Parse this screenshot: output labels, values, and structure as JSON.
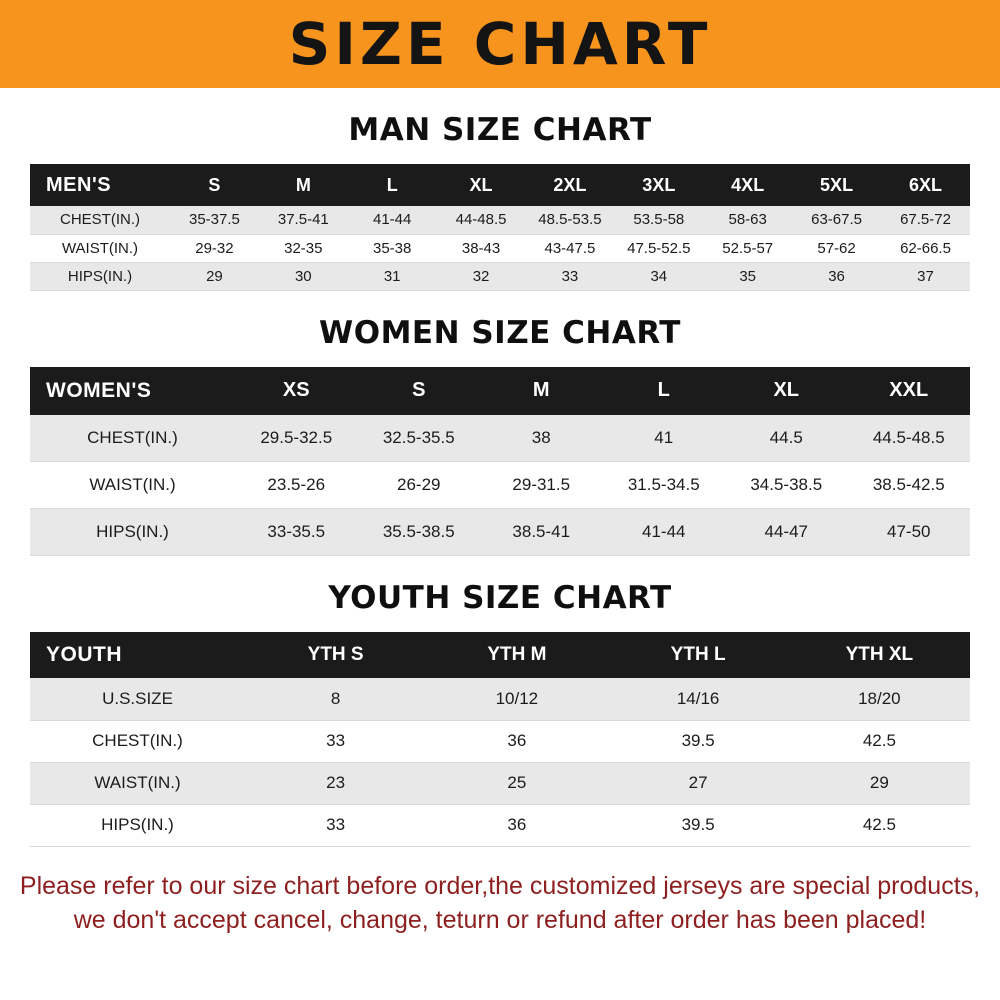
{
  "banner": {
    "title": "SIZE CHART",
    "bg_color": "#F7941E",
    "text_color": "#141414"
  },
  "sections": [
    {
      "heading": "MAN SIZE CHART",
      "table": {
        "header": [
          "MEN'S",
          "S",
          "M",
          "L",
          "XL",
          "2XL",
          "3XL",
          "4XL",
          "5XL",
          "6XL"
        ],
        "rows": [
          [
            "CHEST(IN.)",
            "35-37.5",
            "37.5-41",
            "41-44",
            "44-48.5",
            "48.5-53.5",
            "53.5-58",
            "58-63",
            "63-67.5",
            "67.5-72"
          ],
          [
            "WAIST(IN.)",
            "29-32",
            "32-35",
            "35-38",
            "38-43",
            "43-47.5",
            "47.5-52.5",
            "52.5-57",
            "57-62",
            "62-66.5"
          ],
          [
            "HIPS(IN.)",
            "29",
            "30",
            "31",
            "32",
            "33",
            "34",
            "35",
            "36",
            "37"
          ]
        ]
      }
    },
    {
      "heading": "WOMEN SIZE CHART",
      "table": {
        "header": [
          "WOMEN'S",
          "XS",
          "S",
          "M",
          "L",
          "XL",
          "XXL"
        ],
        "rows": [
          [
            "CHEST(IN.)",
            "29.5-32.5",
            "32.5-35.5",
            "38",
            "41",
            "44.5",
            "44.5-48.5"
          ],
          [
            "WAIST(IN.)",
            "23.5-26",
            "26-29",
            "29-31.5",
            "31.5-34.5",
            "34.5-38.5",
            "38.5-42.5"
          ],
          [
            "HIPS(IN.)",
            "33-35.5",
            "35.5-38.5",
            "38.5-41",
            "41-44",
            "44-47",
            "47-50"
          ]
        ]
      }
    },
    {
      "heading": "YOUTH SIZE CHART",
      "table": {
        "header": [
          "YOUTH",
          "YTH S",
          "YTH M",
          "YTH L",
          "YTH XL"
        ],
        "rows": [
          [
            "U.S.SIZE",
            "8",
            "10/12",
            "14/16",
            "18/20"
          ],
          [
            "CHEST(IN.)",
            "33",
            "36",
            "39.5",
            "42.5"
          ],
          [
            "WAIST(IN.)",
            "23",
            "25",
            "27",
            "29"
          ],
          [
            "HIPS(IN.)",
            "33",
            "36",
            "39.5",
            "42.5"
          ]
        ]
      }
    }
  ],
  "footer": {
    "line1": "Please refer to our size chart before order,the customized jerseys are special products,",
    "line2": "we don't accept cancel, change, teturn or refund after order has been placed!",
    "text_color": "#8E1F1F"
  }
}
